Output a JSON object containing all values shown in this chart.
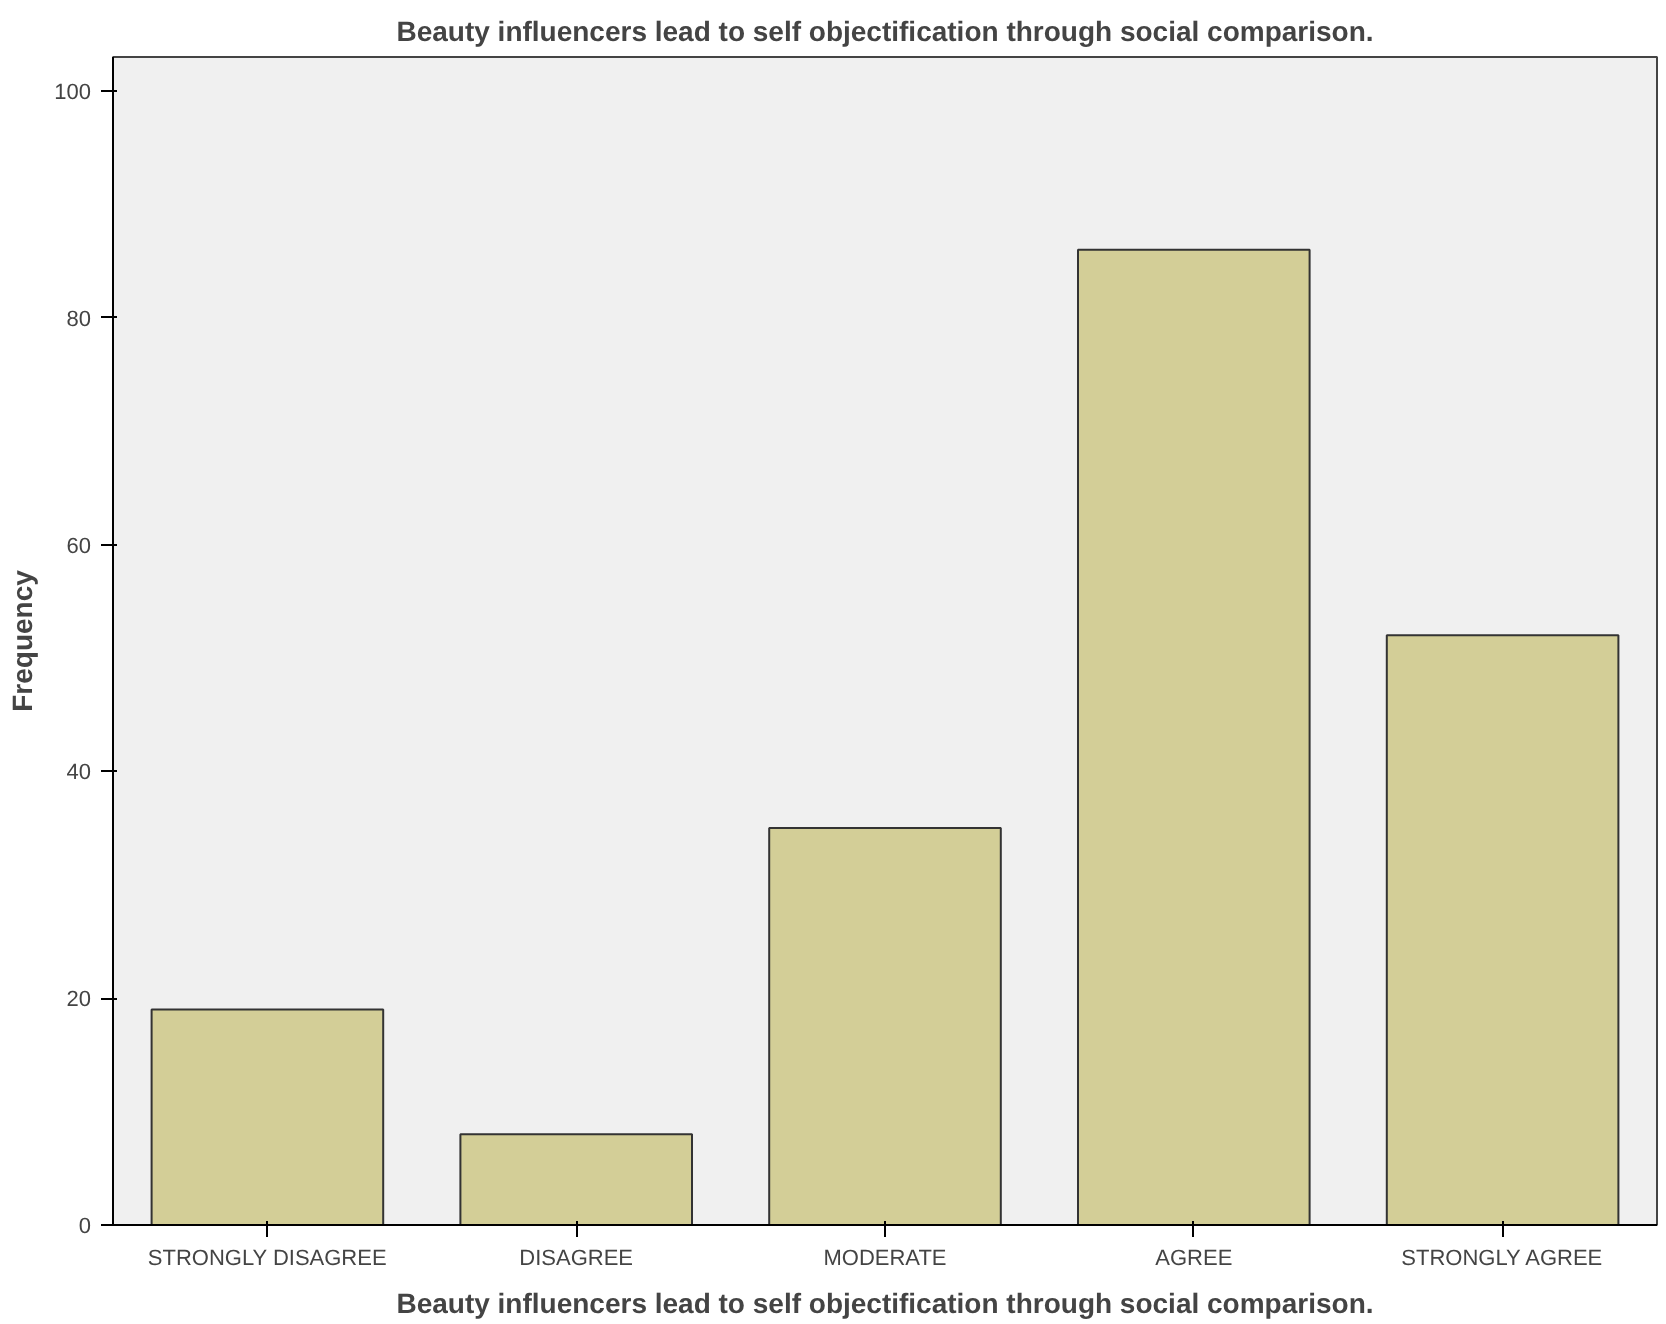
{
  "chart_data": {
    "type": "bar",
    "title": "Beauty influencers lead to self objectification through social comparison.",
    "xlabel": "Beauty influencers lead to self objectification through social comparison.",
    "ylabel": "Frequency",
    "categories": [
      "STRONGLY DISAGREE",
      "DISAGREE",
      "MODERATE",
      "AGREE",
      "STRONGLY AGREE"
    ],
    "values": [
      19,
      8,
      35,
      86,
      52
    ],
    "color": "#d3ce97",
    "ylim": [
      0,
      103
    ],
    "yticks": [
      0,
      20,
      40,
      60,
      80,
      100
    ],
    "grid": false
  }
}
